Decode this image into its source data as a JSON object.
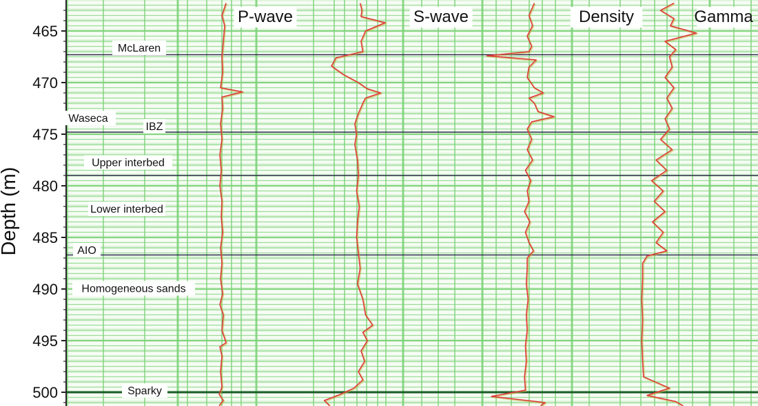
{
  "chart_data": {
    "type": "line",
    "title": "",
    "ylabel": "Depth (m)",
    "xlabel": "",
    "ylim": [
      462.3,
      501.3
    ],
    "yticks": [
      465,
      470,
      475,
      480,
      485,
      490,
      495,
      500
    ],
    "y_inverted": true,
    "grid": true,
    "colors": {
      "grid_line": "#7ed37a",
      "grid_band": "#e2f5df",
      "trace": "#e0343a",
      "trace_shadow": "#c8a93c",
      "formation_top": "#2b2b48",
      "axis": "#222222"
    },
    "series": [
      {
        "name": "P-wave",
        "depth": [
          462.3,
          463.5,
          464.5,
          466,
          467.5,
          469,
          470.5,
          470.9,
          471.4,
          472.5,
          474,
          475.5,
          477,
          478.5,
          480,
          481.5,
          483,
          484.5,
          486,
          487.5,
          489,
          490.5,
          491.5,
          492.5,
          494,
          495.2,
          495.6,
          496.5,
          498,
          499.5,
          500.2,
          500.8,
          501.3
        ],
        "value": [
          0.56,
          0.5,
          0.54,
          0.52,
          0.5,
          0.51,
          0.48,
          0.8,
          0.5,
          0.51,
          0.48,
          0.5,
          0.47,
          0.49,
          0.47,
          0.5,
          0.49,
          0.51,
          0.48,
          0.5,
          0.48,
          0.51,
          0.47,
          0.52,
          0.5,
          0.56,
          0.47,
          0.5,
          0.48,
          0.5,
          0.46,
          0.52,
          0.46
        ]
      },
      {
        "name": "S-wave",
        "depth": [
          462.3,
          463.0,
          463.6,
          464.2,
          465,
          466,
          467,
          467.6,
          468.4,
          469.2,
          470,
          470.6,
          471.0,
          471.5,
          472,
          473,
          474,
          475,
          476,
          477.5,
          479,
          480.5,
          482,
          483.5,
          485,
          486.5,
          488,
          489.5,
          491,
          492.5,
          493.5,
          494.2,
          495,
          496,
          497,
          498,
          498.8,
          499.6,
          500.2,
          500.8,
          501.3
        ],
        "value": [
          0.52,
          0.54,
          0.53,
          0.8,
          0.58,
          0.53,
          0.55,
          0.25,
          0.2,
          0.33,
          0.5,
          0.6,
          0.75,
          0.58,
          0.55,
          0.5,
          0.46,
          0.48,
          0.46,
          0.49,
          0.5,
          0.48,
          0.51,
          0.49,
          0.48,
          0.5,
          0.52,
          0.49,
          0.55,
          0.58,
          0.66,
          0.55,
          0.6,
          0.53,
          0.57,
          0.5,
          0.55,
          0.45,
          0.3,
          0.12,
          0.18
        ]
      },
      {
        "name": "Density",
        "depth": [
          462.3,
          463.5,
          464.5,
          465.5,
          466.5,
          467.0,
          467.4,
          467.8,
          468.5,
          469.5,
          470.5,
          471.0,
          471.5,
          472,
          472.8,
          473.3,
          473.8,
          474.5,
          475.5,
          476.5,
          477.5,
          478.5,
          479.5,
          480.5,
          481.5,
          482.5,
          483.5,
          484.5,
          485.5,
          486.3,
          487.0,
          488,
          489.5,
          491,
          492.5,
          494,
          495.5,
          497,
          498.5,
          499.8,
          500.4,
          501.0,
          501.3
        ],
        "value": [
          0.58,
          0.52,
          0.56,
          0.5,
          0.55,
          0.52,
          0.05,
          0.6,
          0.52,
          0.5,
          0.58,
          0.68,
          0.52,
          0.58,
          0.62,
          0.8,
          0.55,
          0.5,
          0.55,
          0.5,
          0.56,
          0.48,
          0.54,
          0.5,
          0.52,
          0.47,
          0.53,
          0.48,
          0.52,
          0.57,
          0.5,
          0.5,
          0.49,
          0.51,
          0.49,
          0.5,
          0.48,
          0.49,
          0.47,
          0.48,
          0.1,
          0.7,
          0.65
        ]
      },
      {
        "name": "Gamma",
        "depth": [
          462.3,
          463.0,
          463.8,
          464.5,
          465.2,
          466,
          466.8,
          467.5,
          468.5,
          469.5,
          470.5,
          471.5,
          472.5,
          473.5,
          474.5,
          475.5,
          476.5,
          477.5,
          478.5,
          479.5,
          480.5,
          481.5,
          482.5,
          483.5,
          484.5,
          485.5,
          486.3,
          486.8,
          487.5,
          489,
          491,
          493,
          495,
          497,
          498.5,
          499.6,
          500.3,
          500.9,
          501.3
        ],
        "value": [
          0.6,
          0.45,
          0.6,
          0.56,
          0.85,
          0.5,
          0.62,
          0.55,
          0.58,
          0.5,
          0.6,
          0.52,
          0.58,
          0.5,
          0.55,
          0.45,
          0.58,
          0.4,
          0.52,
          0.35,
          0.48,
          0.38,
          0.5,
          0.36,
          0.48,
          0.4,
          0.52,
          0.3,
          0.25,
          0.25,
          0.24,
          0.25,
          0.24,
          0.25,
          0.26,
          0.55,
          0.3,
          0.62,
          0.7
        ]
      }
    ],
    "formation_tops": [
      {
        "name": "McLaren",
        "depth": 467.3
      },
      {
        "name": "IBZ",
        "depth": 474.8
      },
      {
        "name": "Lower interbed",
        "depth": 479.0
      },
      {
        "name": "AIO",
        "depth": 486.7
      },
      {
        "name": "Sparky",
        "depth": 500.0
      }
    ],
    "zone_labels": [
      {
        "name": "McLaren",
        "depth": 466.6
      },
      {
        "name": "Waseca",
        "depth": 473.4
      },
      {
        "name": "IBZ",
        "depth": 474.2
      },
      {
        "name": "Upper interbed",
        "depth": 477.7
      },
      {
        "name": "Lower interbed",
        "depth": 482.2
      },
      {
        "name": "AIO",
        "depth": 486.2
      },
      {
        "name": "Homogeneous sands",
        "depth": 489.9
      },
      {
        "name": "Sparky",
        "depth": 499.8
      }
    ]
  }
}
